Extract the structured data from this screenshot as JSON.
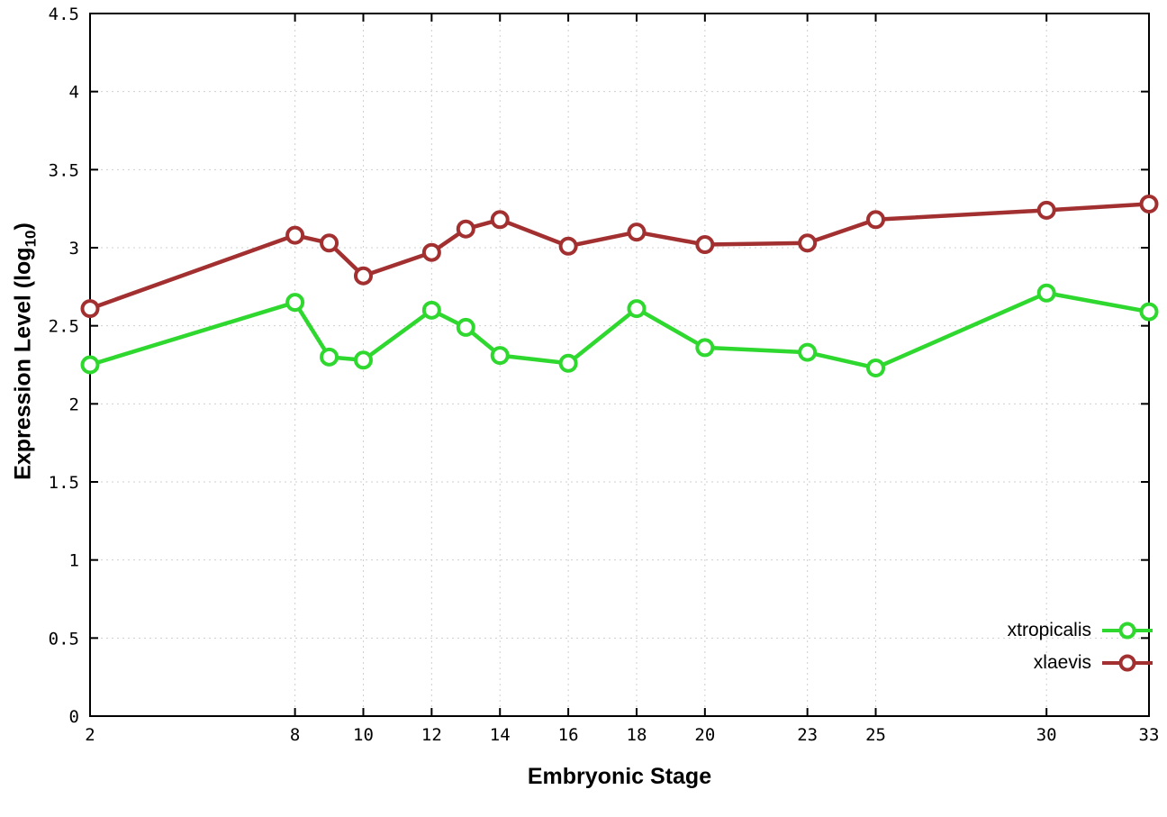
{
  "chart_data": {
    "type": "line",
    "title": "",
    "xlabel": "Embryonic Stage",
    "ylabel": "Expression Level (log10)",
    "ylabel_prefix": "Expression Level (log",
    "ylabel_sub": "10",
    "ylabel_suffix": ")",
    "xlim": [
      2,
      33
    ],
    "ylim": [
      0,
      4.5
    ],
    "grid": true,
    "legend_position": "bottom-right",
    "x_ticks": [
      2,
      8,
      10,
      12,
      14,
      16,
      18,
      20,
      23,
      25,
      30,
      33
    ],
    "y_ticks": [
      0,
      0.5,
      1,
      1.5,
      2,
      2.5,
      3,
      3.5,
      4,
      4.5
    ],
    "y_tick_labels": [
      "0",
      "0.5",
      "1",
      "1.5",
      "2",
      "2.5",
      "3",
      "3.5",
      "4",
      "4.5"
    ],
    "x": [
      2,
      8,
      9,
      10,
      12,
      13,
      14,
      16,
      18,
      20,
      23,
      25,
      30,
      33
    ],
    "series": [
      {
        "name": "xtropicalis",
        "color": "#2ed82e",
        "values": [
          2.25,
          2.65,
          2.3,
          2.28,
          2.6,
          2.49,
          2.31,
          2.26,
          2.61,
          2.36,
          2.33,
          2.23,
          2.71,
          2.59
        ]
      },
      {
        "name": "xlaevis",
        "color": "#a33030",
        "values": [
          2.61,
          3.08,
          3.03,
          2.82,
          2.97,
          3.12,
          3.18,
          3.01,
          3.1,
          3.02,
          3.03,
          3.18,
          3.24,
          3.28
        ]
      }
    ]
  }
}
